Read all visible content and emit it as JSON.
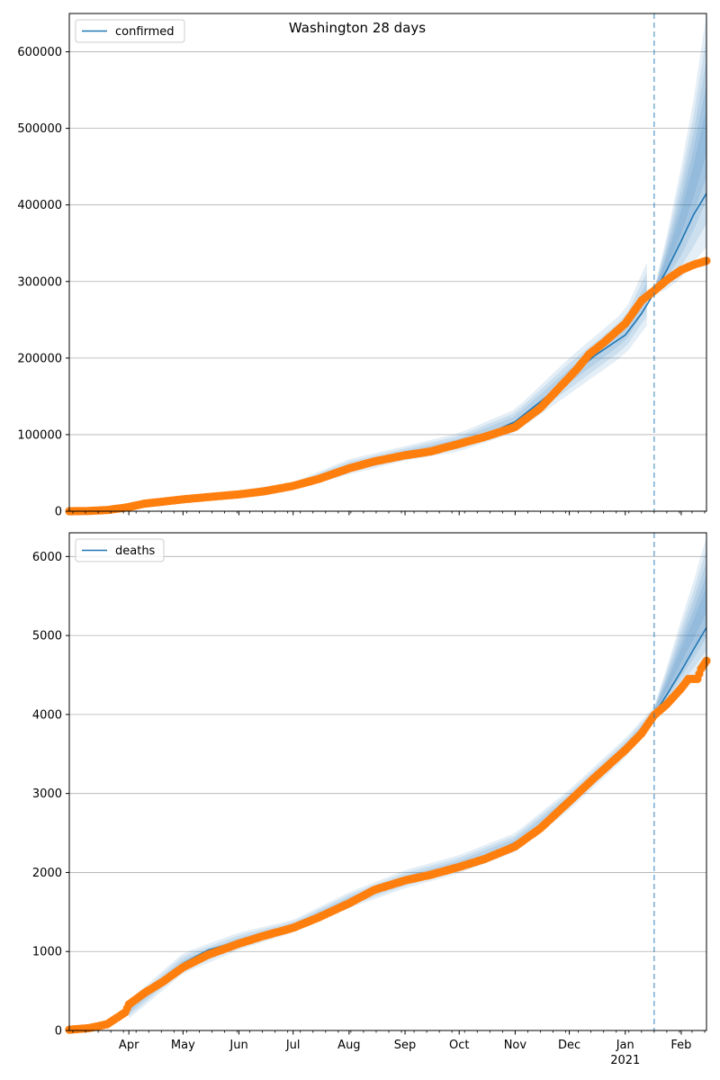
{
  "figure": {
    "title": "Washington 28 days"
  },
  "chart_data": [
    {
      "type": "line",
      "legend": {
        "label": "confirmed",
        "placement": "top-left"
      },
      "ylim": [
        0,
        650000
      ],
      "y_ticks": [
        0,
        100000,
        200000,
        300000,
        400000,
        500000,
        600000
      ],
      "xlim": [
        "2020-02-28",
        "2021-02-15"
      ],
      "grid": "y",
      "forecast_start": "2021-01-17",
      "colors": {
        "fit": "#1f77b4",
        "observed": "#ff7f0e",
        "band": "#1f77b4",
        "vline": "#1f77b4"
      },
      "fit": [
        [
          "2020-03-01",
          1000
        ],
        [
          "2020-03-15",
          2000
        ],
        [
          "2020-04-01",
          7000
        ],
        [
          "2020-04-10",
          11000
        ],
        [
          "2020-05-01",
          16000
        ],
        [
          "2020-06-01",
          23000
        ],
        [
          "2020-07-01",
          33000
        ],
        [
          "2020-07-15",
          43000
        ],
        [
          "2020-08-01",
          56000
        ],
        [
          "2020-08-15",
          66000
        ],
        [
          "2020-09-01",
          74000
        ],
        [
          "2020-09-15",
          80000
        ],
        [
          "2020-10-01",
          89000
        ],
        [
          "2020-10-15",
          99000
        ],
        [
          "2020-11-01",
          117000
        ],
        [
          "2020-11-15",
          143000
        ],
        [
          "2020-12-01",
          175000
        ],
        [
          "2020-12-15",
          203000
        ],
        [
          "2021-01-01",
          230000
        ],
        [
          "2021-01-10",
          258000
        ],
        [
          "2021-01-17",
          285000
        ],
        [
          "2021-01-24",
          315000
        ],
        [
          "2021-02-01",
          353000
        ],
        [
          "2021-02-08",
          388000
        ],
        [
          "2021-02-15",
          415000
        ]
      ],
      "band_upper": [
        [
          "2020-03-01",
          2000
        ],
        [
          "2020-04-01",
          9000
        ],
        [
          "2020-05-01",
          19000
        ],
        [
          "2020-06-01",
          27000
        ],
        [
          "2020-07-01",
          38000
        ],
        [
          "2020-08-01",
          68000
        ],
        [
          "2020-09-01",
          85000
        ],
        [
          "2020-10-01",
          102000
        ],
        [
          "2020-11-01",
          133000
        ],
        [
          "2020-12-01",
          200000
        ],
        [
          "2021-01-01",
          262000
        ],
        [
          "2021-01-13",
          325000
        ]
      ],
      "band_lower": [
        [
          "2020-03-01",
          0
        ],
        [
          "2020-04-01",
          5000
        ],
        [
          "2020-05-01",
          13000
        ],
        [
          "2020-06-01",
          19000
        ],
        [
          "2020-07-01",
          28000
        ],
        [
          "2020-08-01",
          48000
        ],
        [
          "2020-09-01",
          66000
        ],
        [
          "2020-10-01",
          78000
        ],
        [
          "2020-11-01",
          103000
        ],
        [
          "2020-12-01",
          153000
        ],
        [
          "2021-01-01",
          205000
        ],
        [
          "2021-01-17",
          255000
        ]
      ],
      "forecast_upper": [
        [
          "2021-01-17",
          290000
        ],
        [
          "2021-01-24",
          360000
        ],
        [
          "2021-02-01",
          450000
        ],
        [
          "2021-02-08",
          540000
        ],
        [
          "2021-02-15",
          650000
        ]
      ],
      "forecast_lower": [
        [
          "2021-01-17",
          282000
        ],
        [
          "2021-01-24",
          290000
        ],
        [
          "2021-02-01",
          305000
        ],
        [
          "2021-02-08",
          325000
        ],
        [
          "2021-02-15",
          345000
        ]
      ],
      "observed": [
        [
          "2020-02-28",
          0
        ],
        [
          "2020-03-10",
          300
        ],
        [
          "2020-03-20",
          1500
        ],
        [
          "2020-03-31",
          5000
        ],
        [
          "2020-04-10",
          10000
        ],
        [
          "2020-04-20",
          12500
        ],
        [
          "2020-05-01",
          15500
        ],
        [
          "2020-05-15",
          18500
        ],
        [
          "2020-06-01",
          22000
        ],
        [
          "2020-06-15",
          26000
        ],
        [
          "2020-07-01",
          33000
        ],
        [
          "2020-07-15",
          42000
        ],
        [
          "2020-08-01",
          56000
        ],
        [
          "2020-08-15",
          65000
        ],
        [
          "2020-09-01",
          73000
        ],
        [
          "2020-09-15",
          78000
        ],
        [
          "2020-10-01",
          88000
        ],
        [
          "2020-10-15",
          97000
        ],
        [
          "2020-11-01",
          110000
        ],
        [
          "2020-11-15",
          135000
        ],
        [
          "2020-11-25",
          160000
        ],
        [
          "2020-12-05",
          185000
        ],
        [
          "2020-12-12",
          205000
        ],
        [
          "2020-12-20",
          220000
        ],
        [
          "2021-01-01",
          245000
        ],
        [
          "2021-01-10",
          275000
        ],
        [
          "2021-01-17",
          288000
        ],
        [
          "2021-01-24",
          302000
        ],
        [
          "2021-02-01",
          315000
        ],
        [
          "2021-02-08",
          322000
        ],
        [
          "2021-02-15",
          327000
        ]
      ]
    },
    {
      "type": "line",
      "legend": {
        "label": "deaths",
        "placement": "top-left"
      },
      "ylim": [
        0,
        6300
      ],
      "y_ticks": [
        0,
        1000,
        2000,
        3000,
        4000,
        5000,
        6000
      ],
      "xlim": [
        "2020-02-28",
        "2021-02-15"
      ],
      "grid": "y",
      "forecast_start": "2021-01-17",
      "colors": {
        "fit": "#1f77b4",
        "observed": "#ff7f0e",
        "band": "#1f77b4",
        "vline": "#1f77b4"
      },
      "fit": [
        [
          "2020-03-31",
          250
        ],
        [
          "2020-04-15",
          560
        ],
        [
          "2020-05-01",
          850
        ],
        [
          "2020-05-15",
          1020
        ],
        [
          "2020-06-01",
          1130
        ],
        [
          "2020-06-15",
          1220
        ],
        [
          "2020-07-01",
          1320
        ],
        [
          "2020-07-15",
          1450
        ],
        [
          "2020-08-01",
          1650
        ],
        [
          "2020-08-15",
          1800
        ],
        [
          "2020-09-01",
          1920
        ],
        [
          "2020-09-15",
          2000
        ],
        [
          "2020-10-01",
          2100
        ],
        [
          "2020-10-15",
          2200
        ],
        [
          "2020-11-01",
          2380
        ],
        [
          "2020-11-15",
          2580
        ],
        [
          "2020-12-01",
          2920
        ],
        [
          "2020-12-15",
          3250
        ],
        [
          "2021-01-01",
          3580
        ],
        [
          "2021-01-17",
          4000
        ],
        [
          "2021-01-24",
          4250
        ],
        [
          "2021-02-01",
          4550
        ],
        [
          "2021-02-08",
          4830
        ],
        [
          "2021-02-15",
          5100
        ]
      ],
      "band_upper": [
        [
          "2020-04-01",
          380
        ],
        [
          "2020-05-01",
          980
        ],
        [
          "2020-06-01",
          1240
        ],
        [
          "2020-07-01",
          1400
        ],
        [
          "2020-08-01",
          1750
        ],
        [
          "2020-09-01",
          2030
        ],
        [
          "2020-10-01",
          2220
        ],
        [
          "2020-11-01",
          2500
        ],
        [
          "2020-12-01",
          3050
        ],
        [
          "2021-01-01",
          3700
        ],
        [
          "2021-01-17",
          4100
        ]
      ],
      "band_lower": [
        [
          "2020-04-01",
          150
        ],
        [
          "2020-05-01",
          720
        ],
        [
          "2020-06-01",
          1020
        ],
        [
          "2020-07-01",
          1240
        ],
        [
          "2020-08-01",
          1550
        ],
        [
          "2020-09-01",
          1800
        ],
        [
          "2020-10-01",
          1990
        ],
        [
          "2020-11-01",
          2260
        ],
        [
          "2020-12-01",
          2790
        ],
        [
          "2021-01-01",
          3450
        ],
        [
          "2021-01-17",
          3900
        ]
      ],
      "forecast_upper": [
        [
          "2021-01-17",
          4100
        ],
        [
          "2021-01-24",
          4600
        ],
        [
          "2021-02-01",
          5200
        ],
        [
          "2021-02-08",
          5700
        ],
        [
          "2021-02-15",
          6250
        ]
      ],
      "forecast_lower": [
        [
          "2021-01-17",
          3960
        ],
        [
          "2021-01-24",
          4100
        ],
        [
          "2021-02-01",
          4300
        ],
        [
          "2021-02-08",
          4470
        ],
        [
          "2021-02-15",
          4650
        ]
      ],
      "observed": [
        [
          "2020-02-28",
          10
        ],
        [
          "2020-03-10",
          30
        ],
        [
          "2020-03-20",
          80
        ],
        [
          "2020-03-30",
          230
        ],
        [
          "2020-04-01",
          330
        ],
        [
          "2020-04-10",
          480
        ],
        [
          "2020-04-20",
          620
        ],
        [
          "2020-05-01",
          800
        ],
        [
          "2020-05-15",
          960
        ],
        [
          "2020-06-01",
          1100
        ],
        [
          "2020-06-15",
          1200
        ],
        [
          "2020-07-01",
          1300
        ],
        [
          "2020-07-15",
          1430
        ],
        [
          "2020-08-01",
          1610
        ],
        [
          "2020-08-15",
          1780
        ],
        [
          "2020-09-01",
          1900
        ],
        [
          "2020-09-15",
          1970
        ],
        [
          "2020-10-01",
          2070
        ],
        [
          "2020-10-15",
          2170
        ],
        [
          "2020-11-01",
          2330
        ],
        [
          "2020-11-15",
          2560
        ],
        [
          "2020-12-01",
          2900
        ],
        [
          "2020-12-15",
          3200
        ],
        [
          "2021-01-01",
          3550
        ],
        [
          "2021-01-10",
          3760
        ],
        [
          "2021-01-17",
          3990
        ],
        [
          "2021-01-24",
          4130
        ],
        [
          "2021-02-01",
          4330
        ],
        [
          "2021-02-05",
          4450
        ],
        [
          "2021-02-10",
          4450
        ],
        [
          "2021-02-12",
          4580
        ],
        [
          "2021-02-15",
          4680
        ]
      ]
    }
  ],
  "x_axis": {
    "ticks": [
      {
        "date": "2020-04-01",
        "label": "Apr"
      },
      {
        "date": "2020-05-01",
        "label": "May"
      },
      {
        "date": "2020-06-01",
        "label": "Jun"
      },
      {
        "date": "2020-07-01",
        "label": "Jul"
      },
      {
        "date": "2020-08-01",
        "label": "Aug"
      },
      {
        "date": "2020-09-01",
        "label": "Sep"
      },
      {
        "date": "2020-10-01",
        "label": "Oct"
      },
      {
        "date": "2020-11-01",
        "label": "Nov"
      },
      {
        "date": "2020-12-01",
        "label": "Dec"
      },
      {
        "date": "2021-01-01",
        "label": "Jan"
      },
      {
        "date": "2021-02-01",
        "label": "Feb"
      }
    ],
    "year_label": {
      "date": "2021-01-01",
      "label": "2021"
    }
  }
}
